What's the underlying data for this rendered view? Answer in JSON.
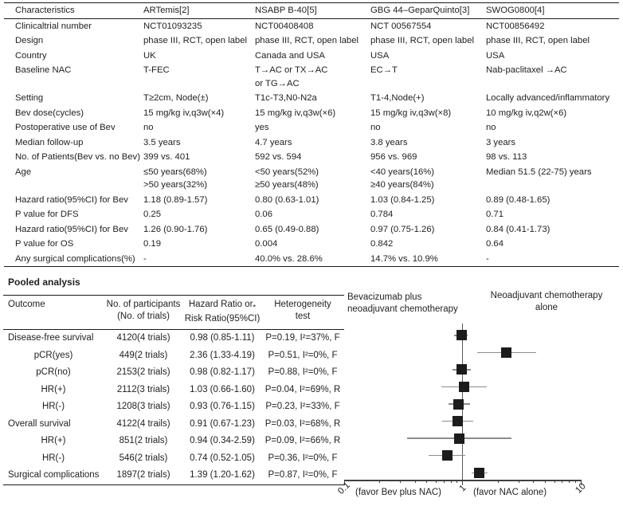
{
  "trials_table": {
    "header": [
      "Characteristics",
      "ARTemis[2]",
      "NSABP B-40[5]",
      "GBG 44–GeparQuinto[3]",
      "SWOG0800[4]"
    ],
    "rows": [
      {
        "label": "Clinicaltrial number",
        "values": [
          "NCT01093235",
          "NCT00408408",
          "NCT 00567554",
          "NCT00856492"
        ]
      },
      {
        "label": "Design",
        "values": [
          "phase III, RCT, open label",
          "phase III, RCT, open label",
          "phase III, RCT, open label",
          "phase III, RCT, open label"
        ]
      },
      {
        "label": "Country",
        "values": [
          "UK",
          "Canada and USA",
          "USA",
          "USA"
        ]
      },
      {
        "label": "Baseline NAC",
        "values": [
          "T-FEC",
          "T→AC or TX→AC\nor TG→AC",
          "EC→T",
          "Nab-paclitaxel →AC"
        ]
      },
      {
        "label": "Setting",
        "values": [
          "T≥2cm, Node(±)",
          "T1c-T3,N0-N2a",
          "T1-4,Node(+)",
          "Locally advanced/inflammatory"
        ]
      },
      {
        "label": "Bev dose(cycles)",
        "values": [
          "15 mg/kg iv,q3w(×4)",
          "15 mg/kg iv,q3w(×6)",
          "15 mg/kg iv,q3w(×8)",
          "10 mg/kg iv,q2w(×6)"
        ]
      },
      {
        "label": "Postoperative use of Bev",
        "values": [
          "no",
          "yes",
          "no",
          "no"
        ]
      },
      {
        "label": "Median follow-up",
        "values": [
          "3.5 years",
          "4.7 years",
          "3.8 years",
          "3 years"
        ]
      },
      {
        "label": "No. of Patients(Bev vs. no Bev)",
        "values": [
          "399 vs. 401",
          "592 vs. 594",
          "956 vs. 969",
          "98 vs. 113"
        ]
      },
      {
        "label": "Age",
        "values": [
          "≤50 years(68%)\n>50 years(32%)",
          "<50 years(52%)\n≥50 years(48%)",
          "<40 years(16%)\n≥40 years(84%)",
          "Median 51.5 (22-75) years"
        ]
      },
      {
        "label": "Hazard ratio(95%CI) for Bev",
        "values": [
          "1.18 (0.89-1.57)",
          "0.80 (0.63-1.01)",
          "1.03 (0.84-1.25)",
          "0.89 (0.48-1.65)"
        ]
      },
      {
        "label": "P value for DFS",
        "values": [
          "0.25",
          "0.06",
          "0.784",
          "0.71"
        ]
      },
      {
        "label": "Hazard ratio(95%CI) for Bev",
        "values": [
          "1.26 (0.90-1.76)",
          "0.65 (0.49-0.88)",
          "0.97 (0.75-1.26)",
          "0.84 (0.41-1.73)"
        ]
      },
      {
        "label": "P value for OS",
        "values": [
          "0.19",
          "0.004",
          "0.842",
          "0.64"
        ]
      },
      {
        "label": "Any surgical complications(%)",
        "values": [
          "-",
          "40.0% vs. 28.6%",
          "14.7% vs. 10.9%",
          "-"
        ]
      }
    ]
  },
  "pooled": {
    "title": "Pooled analysis",
    "columns": {
      "outcome": "Outcome",
      "participants": "No. of participants\n(No. of trials)",
      "ratio_line1": "Hazard Ratio or",
      "ratio_star": "*",
      "ratio_line2": "Risk Ratio(95%CI)",
      "heterogeneity": "Heterogeneity\ntest"
    },
    "rows": [
      {
        "outcome": "Disease-free survival",
        "sub": false,
        "participants": "4120(4 trials)",
        "ratio": "0.98 (0.85-1.11)",
        "heterogeneity": "P=0.19, I²=37%, F"
      },
      {
        "outcome": "pCR(yes)",
        "sub": true,
        "participants": "449(2 trials)",
        "ratio": "2.36 (1.33-4.19)",
        "heterogeneity": "P=0.51, I²=0%, F"
      },
      {
        "outcome": "pCR(no)",
        "sub": true,
        "participants": "2153(2 trials)",
        "ratio": "0.98 (0.82-1.17)",
        "heterogeneity": "P=0.88, I²=0%, F"
      },
      {
        "outcome": "HR(+)",
        "sub": true,
        "participants": "2112(3 trials)",
        "ratio": "1.03 (0.66-1.60)",
        "heterogeneity": "P=0.04, I²=69%, R"
      },
      {
        "outcome": "HR(-)",
        "sub": true,
        "participants": "1208(3 trials)",
        "ratio": "0.93 (0.76-1.15)",
        "heterogeneity": "P=0.23, I²=33%, F"
      },
      {
        "outcome": "Overall survival",
        "sub": false,
        "participants": "4122(4 trails)",
        "ratio": "0.91 (0.67-1.23)",
        "heterogeneity": "P=0.03, I²=68%, R"
      },
      {
        "outcome": "HR(+)",
        "sub": true,
        "participants": "851(2 trials)",
        "ratio": "0.94 (0.34-2.59)",
        "heterogeneity": "P=0.09, I²=66%, R"
      },
      {
        "outcome": "HR(-)",
        "sub": true,
        "participants": "546(2 trials)",
        "ratio": "0.74 (0.52-1.05)",
        "heterogeneity": "P=0.36, I²=0%, F"
      },
      {
        "outcome": "Surgical complications",
        "sub": false,
        "participants": "1897(2 trials)",
        "ratio": "1.39 (1.20-1.62)",
        "heterogeneity": "P=0.87, I²=0%, F"
      }
    ]
  },
  "chart_data": {
    "type": "forest",
    "xscale": "log",
    "xlim": [
      0.1,
      10
    ],
    "xticks_major": [
      0.1,
      1,
      10
    ],
    "reference_line": 1,
    "group_left": "Bevacizumab plus\nneoadjuvant chemotherapy",
    "group_right": "Neoadjuvant chemotherapy\nalone",
    "xlabel_left": "(favor Bev plus NAC)",
    "xlabel_right": "(favor NAC alone)",
    "marker_color": "#1c1c1c",
    "ci_color": "#8c8c8c",
    "rows": [
      {
        "label": "Disease-free survival",
        "est": 0.98,
        "lo": 0.85,
        "hi": 1.11
      },
      {
        "label": "pCR(yes)",
        "est": 2.36,
        "lo": 1.33,
        "hi": 4.19
      },
      {
        "label": "pCR(no)",
        "est": 0.98,
        "lo": 0.82,
        "hi": 1.17
      },
      {
        "label": "HR(+)",
        "est": 1.03,
        "lo": 0.66,
        "hi": 1.6
      },
      {
        "label": "HR(-)",
        "est": 0.93,
        "lo": 0.76,
        "hi": 1.15
      },
      {
        "label": "Overall survival",
        "est": 0.91,
        "lo": 0.67,
        "hi": 1.23
      },
      {
        "label": "HR(+)",
        "est": 0.94,
        "lo": 0.34,
        "hi": 2.59
      },
      {
        "label": "HR(-)",
        "est": 0.74,
        "lo": 0.52,
        "hi": 1.05
      },
      {
        "label": "Surgical complications",
        "est": 1.39,
        "lo": 1.2,
        "hi": 1.62
      }
    ]
  }
}
